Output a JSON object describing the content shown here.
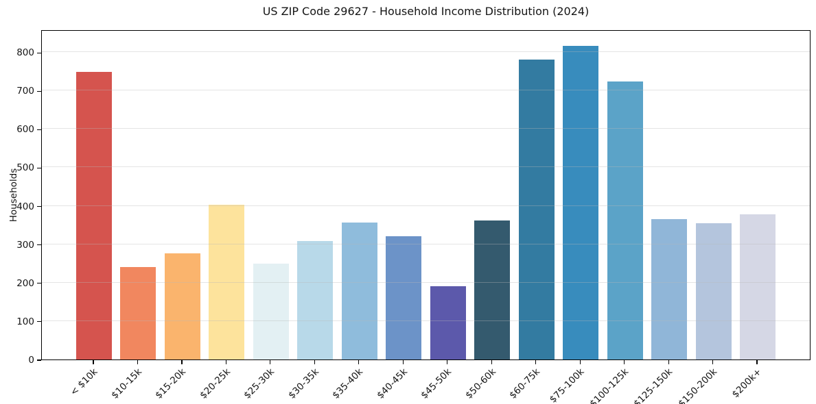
{
  "chart_data": {
    "type": "bar",
    "title": "US ZIP Code 29627 - Household Income Distribution (2024)",
    "xlabel": "",
    "ylabel": "Households",
    "categories": [
      "< $10k",
      "$10-15k",
      "$15-20k",
      "$20-25k",
      "$25-30k",
      "$30-35k",
      "$35-40k",
      "$40-45k",
      "$45-50k",
      "$50-60k",
      "$60-75k",
      "$75-100k",
      "$100-125k",
      "$125-150k",
      "$150-200k",
      "$200k+"
    ],
    "values": [
      748,
      240,
      277,
      403,
      250,
      308,
      357,
      320,
      190,
      361,
      780,
      816,
      724,
      365,
      354,
      377
    ],
    "bar_colors": [
      "#d5544e",
      "#f1875f",
      "#fab46d",
      "#fde39c",
      "#e3f0f3",
      "#b8d9e9",
      "#8fbcdc",
      "#6c93c8",
      "#5c59ab",
      "#345a6e",
      "#337ba1",
      "#388cbd",
      "#5ba3c8",
      "#90b6d8",
      "#b4c5dd",
      "#d5d7e5"
    ],
    "yticks": [
      0,
      100,
      200,
      300,
      400,
      500,
      600,
      700,
      800
    ],
    "ylim": [
      0,
      859
    ],
    "grid": "horizontal-light",
    "gridline_color": "#e6e6e6",
    "legend": "none",
    "background": "#ffffff",
    "axis_color": "#000000"
  }
}
